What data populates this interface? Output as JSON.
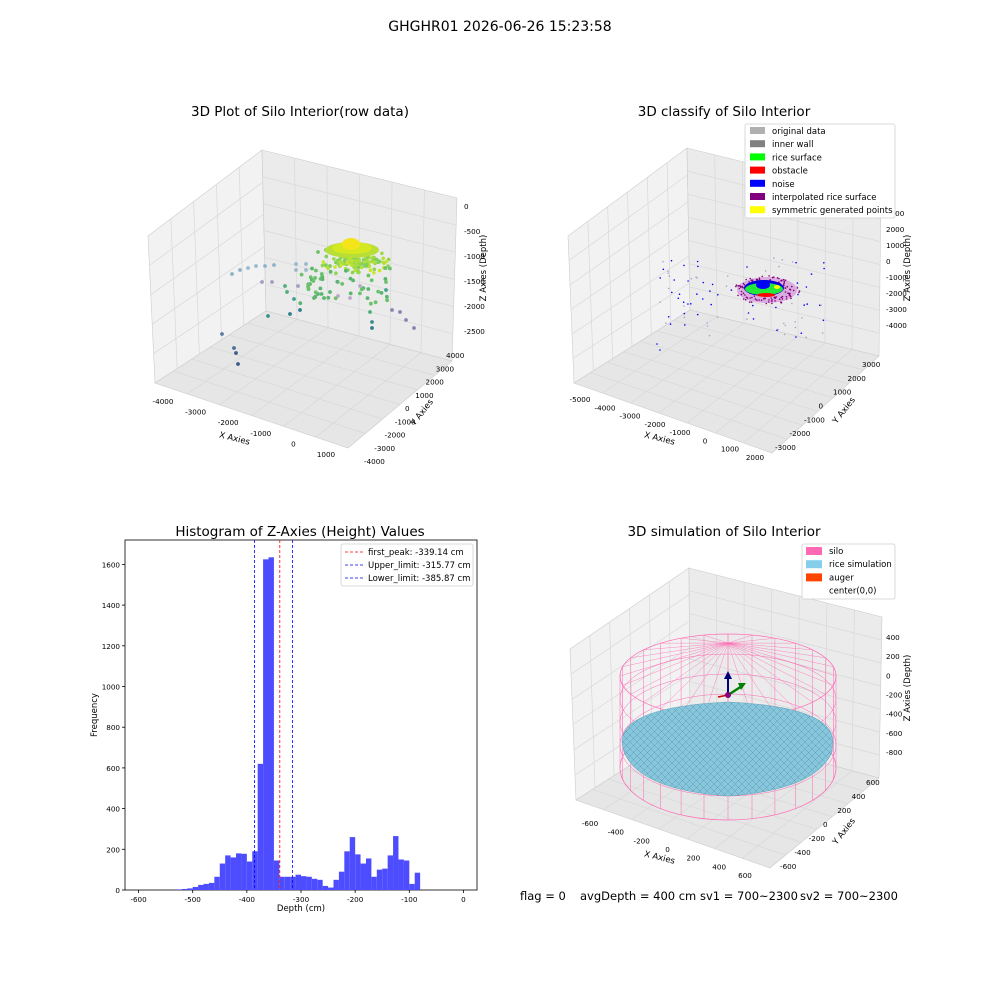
{
  "figure": {
    "suptitle": "GHGHR01 2026-06-26 15:23:58",
    "footer": {
      "flag": "flag = 0",
      "avg_depth": "avgDepth = 400 cm",
      "sv1": "sv1 = 700~2300",
      "sv2": "sv2 = 700~2300"
    }
  },
  "chart_data": [
    {
      "type": "scatter",
      "projection": "3d",
      "title": "3D Plot of Silo Interior(row data)",
      "xlabel": "X Axies",
      "ylabel": "Y Axies",
      "zlabel": "Z Axies (Depth)",
      "xticks": [
        "-4000",
        "-3000",
        "-2000",
        "-1000",
        "0",
        "1000"
      ],
      "yticks": [
        "-4000",
        "-3000",
        "-2000",
        "-1000",
        "0",
        "1000",
        "2000",
        "3000",
        "4000"
      ],
      "zticks": [
        "0",
        "-500",
        "-1000",
        "-1500",
        "-2000",
        "-2500"
      ],
      "colormap": "viridis by depth",
      "grid": true
    },
    {
      "type": "scatter",
      "projection": "3d",
      "title": "3D classify of Silo Interior",
      "xlabel": "X Axies",
      "ylabel": "Y Axies",
      "zlabel": "Z Axies (Depth)",
      "xticks": [
        "-5000",
        "-4000",
        "-3000",
        "-2000",
        "-1000",
        "0",
        "1000",
        "2000"
      ],
      "yticks": [
        "-3000",
        "-2000",
        "-1000",
        "0",
        "1000",
        "2000",
        "3000"
      ],
      "zticks": [
        "3000",
        "2000",
        "1000",
        "0",
        "-1000",
        "-2000",
        "-3000",
        "-4000"
      ],
      "legend_position": "top-right",
      "legend": [
        {
          "label": "original data",
          "color": "#b0b0b0"
        },
        {
          "label": "inner wall",
          "color": "#808080"
        },
        {
          "label": "rice surface",
          "color": "#00ff00"
        },
        {
          "label": "obstacle",
          "color": "#ff0000"
        },
        {
          "label": "noise",
          "color": "#0000ff"
        },
        {
          "label": "interpolated rice surface",
          "color": "#800080"
        },
        {
          "label": "symmetric generated points",
          "color": "#ffff00"
        }
      ],
      "grid": true
    },
    {
      "type": "bar",
      "subtype": "histogram",
      "title": "Histogram of Z-Axies (Height) Values",
      "xlabel": "Depth (cm)",
      "ylabel": "Frequency",
      "xlim": [
        -625,
        25
      ],
      "ylim": [
        0,
        1720
      ],
      "xticks": [
        "-600",
        "-500",
        "-400",
        "-300",
        "-200",
        "-100",
        "0"
      ],
      "yticks": [
        "0",
        "200",
        "400",
        "600",
        "800",
        "1000",
        "1200",
        "1400",
        "1600"
      ],
      "bar_color": "#4d4dff",
      "bin_width": 10,
      "bins": [
        {
          "x": -530,
          "v": 3
        },
        {
          "x": -520,
          "v": 5
        },
        {
          "x": -510,
          "v": 8
        },
        {
          "x": -500,
          "v": 15
        },
        {
          "x": -490,
          "v": 25
        },
        {
          "x": -480,
          "v": 30
        },
        {
          "x": -470,
          "v": 35
        },
        {
          "x": -460,
          "v": 65
        },
        {
          "x": -450,
          "v": 130
        },
        {
          "x": -440,
          "v": 170
        },
        {
          "x": -430,
          "v": 160
        },
        {
          "x": -420,
          "v": 180
        },
        {
          "x": -410,
          "v": 178
        },
        {
          "x": -400,
          "v": 140
        },
        {
          "x": -390,
          "v": 190
        },
        {
          "x": -380,
          "v": 620
        },
        {
          "x": -370,
          "v": 1625
        },
        {
          "x": -360,
          "v": 1635
        },
        {
          "x": -350,
          "v": 145
        },
        {
          "x": -340,
          "v": 65
        },
        {
          "x": -330,
          "v": 65
        },
        {
          "x": -320,
          "v": 65
        },
        {
          "x": -310,
          "v": 75
        },
        {
          "x": -300,
          "v": 68
        },
        {
          "x": -290,
          "v": 65
        },
        {
          "x": -280,
          "v": 55
        },
        {
          "x": -270,
          "v": 50
        },
        {
          "x": -260,
          "v": 20
        },
        {
          "x": -250,
          "v": 12
        },
        {
          "x": -240,
          "v": 50
        },
        {
          "x": -230,
          "v": 90
        },
        {
          "x": -220,
          "v": 190
        },
        {
          "x": -210,
          "v": 260
        },
        {
          "x": -200,
          "v": 175
        },
        {
          "x": -190,
          "v": 130
        },
        {
          "x": -180,
          "v": 155
        },
        {
          "x": -170,
          "v": 65
        },
        {
          "x": -160,
          "v": 100
        },
        {
          "x": -150,
          "v": 105
        },
        {
          "x": -140,
          "v": 170
        },
        {
          "x": -130,
          "v": 265
        },
        {
          "x": -120,
          "v": 150
        },
        {
          "x": -110,
          "v": 145
        },
        {
          "x": -100,
          "v": 30
        },
        {
          "x": -90,
          "v": 85
        }
      ],
      "vlines": [
        {
          "label": "first_peak: -339.14 cm",
          "x": -339.14,
          "color": "#ff0000"
        },
        {
          "label": "Upper_limit: -315.77 cm",
          "x": -315.77,
          "color": "#0000ff"
        },
        {
          "label": "Lower_limit: -385.87 cm",
          "x": -385.87,
          "color": "#0000ff"
        }
      ],
      "legend_position": "top-right"
    },
    {
      "type": "scatter",
      "projection": "3d",
      "title": "3D simulation of Silo Interior",
      "xlabel": "X Axies",
      "ylabel": "Y Axies",
      "zlabel": "Z Axies (Depth)",
      "xticks": [
        "-600",
        "-400",
        "-200",
        "0",
        "200",
        "400",
        "600"
      ],
      "yticks": [
        "-600",
        "-400",
        "-200",
        "0",
        "200",
        "400",
        "600"
      ],
      "zticks": [
        "400",
        "200",
        "0",
        "-200",
        "-400",
        "-600",
        "-800"
      ],
      "legend_position": "top-right",
      "legend": [
        {
          "label": "silo",
          "color": "#ff69b4"
        },
        {
          "label": "rice simulation",
          "color": "#87ceeb"
        },
        {
          "label": "auger",
          "color": "#ff4500"
        },
        {
          "label": "center(0,0)",
          "color": "#ffffff"
        }
      ],
      "grid": true
    }
  ]
}
